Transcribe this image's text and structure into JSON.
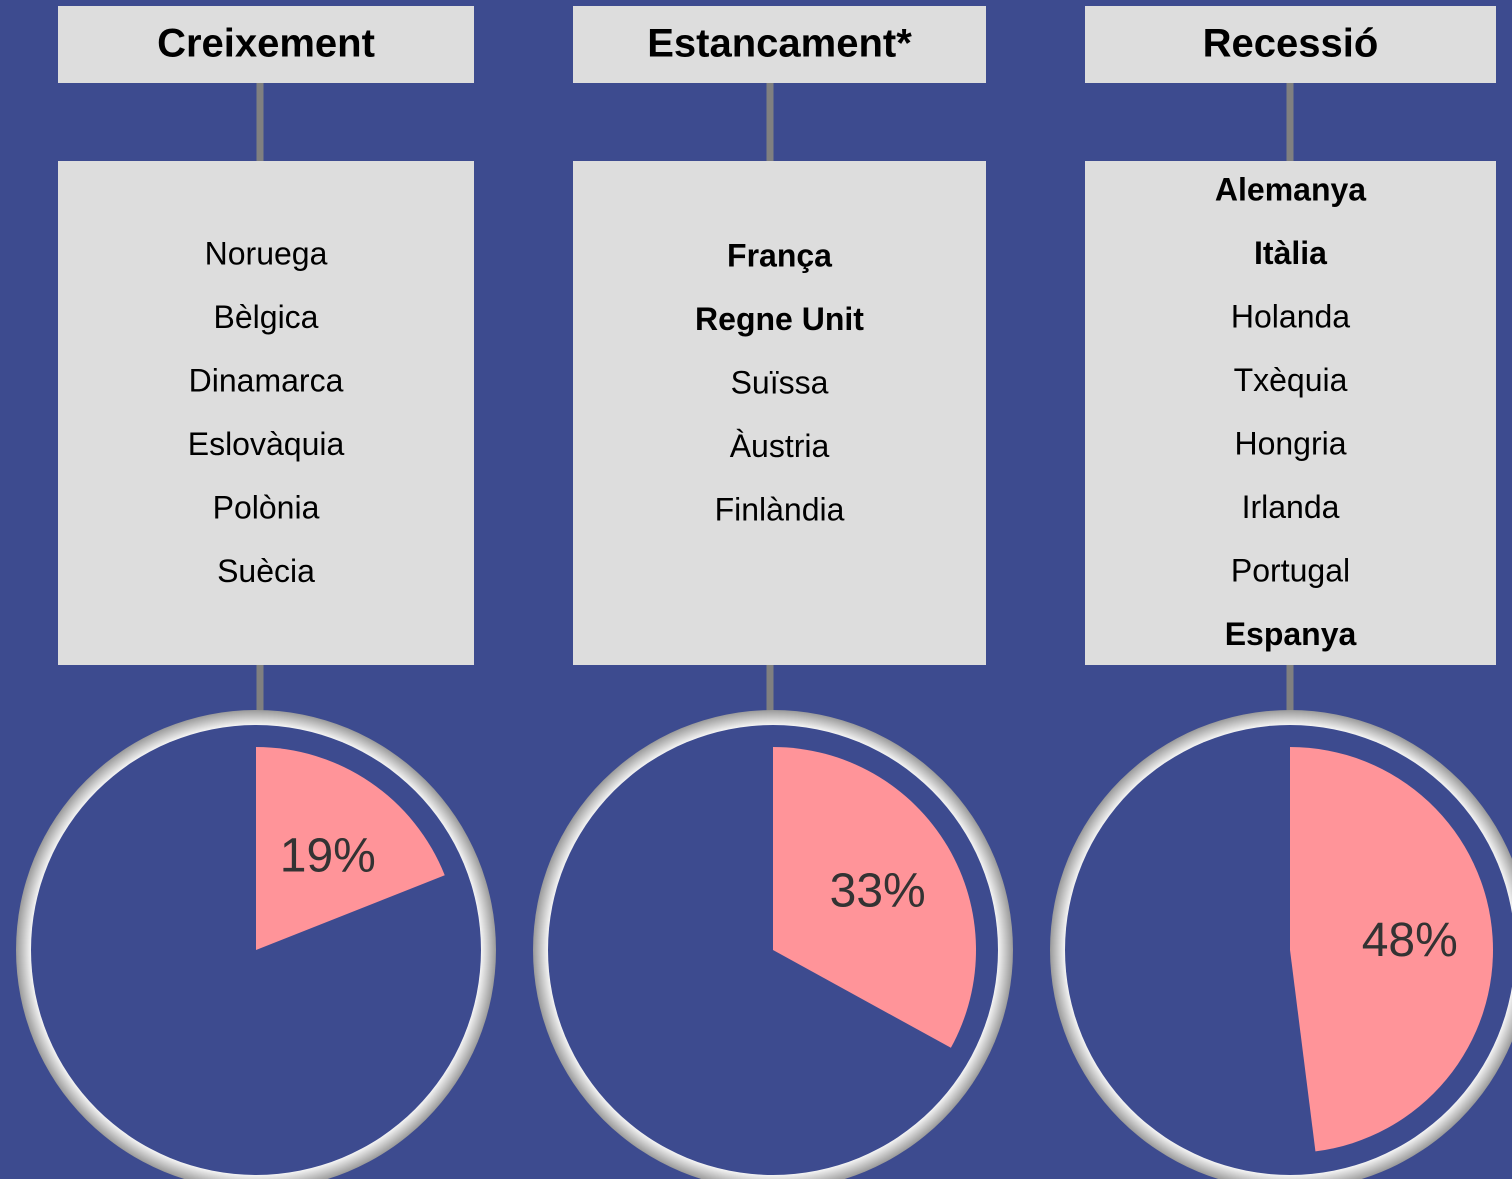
{
  "columns": [
    {
      "title": "Creixement",
      "countries": [
        {
          "name": "Noruega",
          "bold": false
        },
        {
          "name": "Bèlgica",
          "bold": false
        },
        {
          "name": "Dinamarca",
          "bold": false
        },
        {
          "name": "Eslovàquia",
          "bold": false
        },
        {
          "name": "Polònia",
          "bold": false
        },
        {
          "name": "Suècia",
          "bold": false
        }
      ],
      "pie": {
        "value": 19,
        "label": "19%"
      }
    },
    {
      "title": "Estancament*",
      "countries": [
        {
          "name": "França",
          "bold": true
        },
        {
          "name": "Regne Unit",
          "bold": true
        },
        {
          "name": "Suïssa",
          "bold": false
        },
        {
          "name": "Àustria",
          "bold": false
        },
        {
          "name": "Finlàndia",
          "bold": false
        }
      ],
      "pie": {
        "value": 33,
        "label": "33%"
      }
    },
    {
      "title": "Recessió",
      "countries": [
        {
          "name": "Alemanya",
          "bold": true
        },
        {
          "name": "Itàlia",
          "bold": true
        },
        {
          "name": "Holanda",
          "bold": false
        },
        {
          "name": "Txèquia",
          "bold": false
        },
        {
          "name": "Hongria",
          "bold": false
        },
        {
          "name": "Irlanda",
          "bold": false
        },
        {
          "name": "Portugal",
          "bold": false
        },
        {
          "name": "Espanya",
          "bold": true
        }
      ],
      "pie": {
        "value": 48,
        "label": "48%"
      }
    }
  ]
}
